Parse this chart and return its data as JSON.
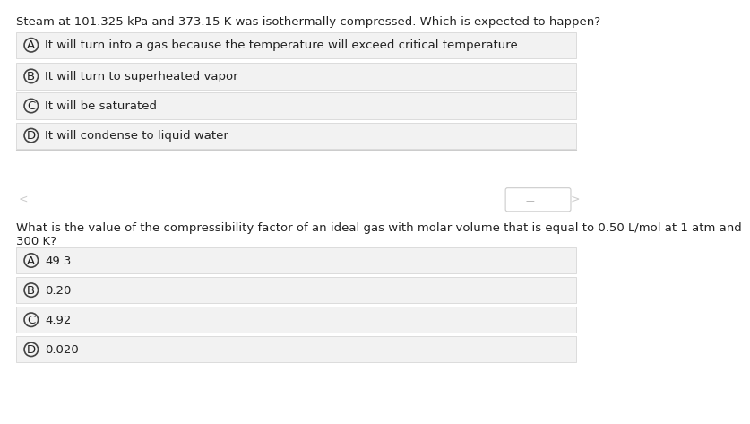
{
  "bg_color": "#ffffff",
  "option_bg_color": "#f2f2f2",
  "option_border_color": "#d0d0d0",
  "text_color": "#222222",
  "circle_color": "#444444",
  "question1": "Steam at 101.325 kPa and 373.15 K was isothermally compressed. Which is expected to happen?",
  "q1_options": [
    [
      "A",
      "It will turn into a gas because the temperature will exceed critical temperature"
    ],
    [
      "B",
      "It will turn to superheated vapor"
    ],
    [
      "C",
      "It will be saturated"
    ],
    [
      "D",
      "It will condense to liquid water"
    ]
  ],
  "question2": "What is the value of the compressibility factor of an ideal gas with molar volume that is equal to 0.50 L/mol at 1 atm and\n300 K?",
  "q2_options": [
    [
      "A",
      "49.3"
    ],
    [
      "B",
      "0.20"
    ],
    [
      "C",
      "4.92"
    ],
    [
      "D",
      "0.020"
    ]
  ],
  "divider_color": "#cccccc",
  "font_size_question": 9.5,
  "font_size_option": 9.5,
  "font_size_circle": 9.5,
  "nav_left_text": "<",
  "nav_right_text": ">"
}
